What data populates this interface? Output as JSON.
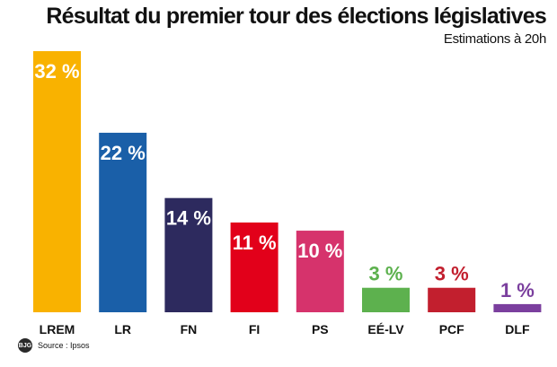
{
  "header": {
    "title": "Résultat du premier tour des élections législatives",
    "subtitle": "Estimations à 20h"
  },
  "footer": {
    "logo_text": "BJG",
    "source": "Source : Ipsos"
  },
  "chart_data": {
    "type": "bar",
    "title": "Résultat du premier tour des élections législatives",
    "subtitle": "Estimations à 20h",
    "categories": [
      "LREM",
      "LR",
      "FN",
      "FI",
      "PS",
      "EÉ-LV",
      "PCF",
      "DLF"
    ],
    "values": [
      32,
      22,
      14,
      11,
      10,
      3,
      3,
      1
    ],
    "labels": [
      "32 %",
      "22 %",
      "14 %",
      "11 %",
      "10 %",
      "3 %",
      "3 %",
      "1 %"
    ],
    "colors": [
      "#F9B200",
      "#1A5FA8",
      "#2D2A5E",
      "#E2001A",
      "#D6336C",
      "#5DB14E",
      "#C21F2E",
      "#7B3F9E"
    ],
    "label_colors": [
      "#ffffff",
      "#ffffff",
      "#ffffff",
      "#ffffff",
      "#ffffff",
      "#5DB14E",
      "#C21F2E",
      "#7B3F9E"
    ],
    "xlabel": "",
    "ylabel": "",
    "ylim": [
      0,
      32
    ],
    "grid": false,
    "legend": "none"
  }
}
